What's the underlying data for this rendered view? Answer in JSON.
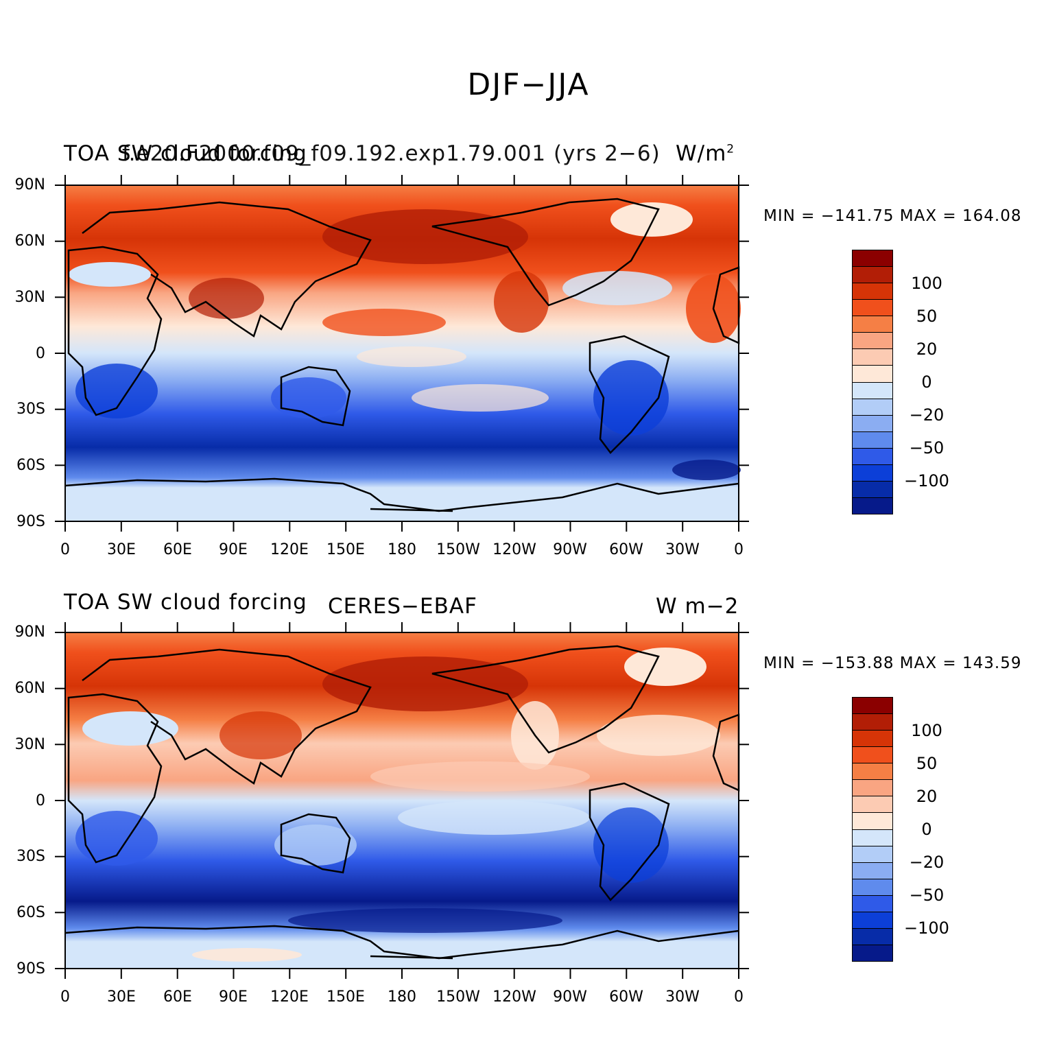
{
  "title": "DJF−JJA",
  "x_tick_labels": [
    "0",
    "30E",
    "60E",
    "90E",
    "120E",
    "150E",
    "180",
    "150W",
    "120W",
    "90W",
    "60W",
    "30W",
    "0"
  ],
  "y_tick_labels": [
    "90N",
    "60N",
    "30N",
    "0",
    "30S",
    "60S",
    "90S"
  ],
  "colorbar_labels": [
    "100",
    "50",
    "20",
    "0",
    "−20",
    "−50",
    "−100"
  ],
  "colorbar_colors": [
    "#8b0000",
    "#b21e06",
    "#d63407",
    "#f0501c",
    "#f57f45",
    "#f9a582",
    "#fccbb3",
    "#fee8d8",
    "#d4e6fa",
    "#b2cdf7",
    "#8badf2",
    "#5f8bed",
    "#2f5ae8",
    "#0c3fd8",
    "#072ca8",
    "#061a8a"
  ],
  "panels": [
    {
      "left_title": "TOA SW cloud forcing",
      "center_title": "f.e20.F2000.f09_f09.192.exp1.79.001 (yrs 2−6)",
      "units": "W/m",
      "units_sup": "2",
      "minmax": "MIN = −141.75  MAX = 164.08"
    },
    {
      "left_title": "TOA SW cloud forcing",
      "center_title": "CERES−EBAF",
      "units": "W m−2",
      "units_sup": "",
      "minmax": "MIN = −153.88  MAX = 143.59"
    }
  ]
}
